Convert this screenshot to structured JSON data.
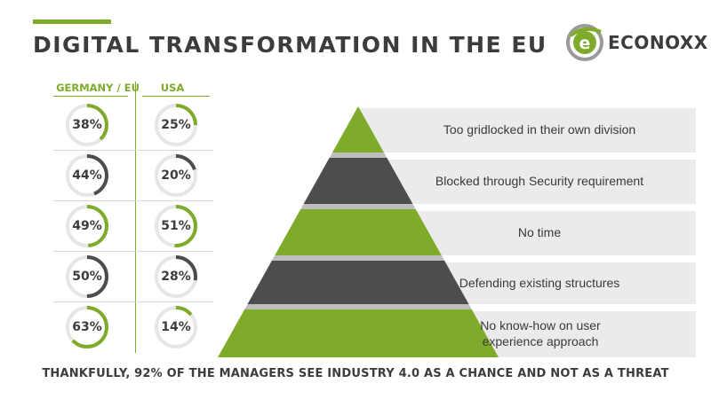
{
  "title": "DIGITAL TRANSFORMATION IN THE EU",
  "logo": {
    "text": "ECONOXX",
    "letter": "e"
  },
  "colors": {
    "green": "#7eab2a",
    "dark": "#4d4d4d",
    "ring_track": "#e6e6e6",
    "band": "#ebebeb"
  },
  "chart_data": [
    {
      "type": "table",
      "columns": [
        "GERMANY / EU",
        "USA"
      ],
      "rows": [
        {
          "germany_eu": 38,
          "usa": 25,
          "germany_color": "green",
          "usa_color": "green"
        },
        {
          "germany_eu": 44,
          "usa": 20,
          "germany_color": "dark",
          "usa_color": "dark"
        },
        {
          "germany_eu": 49,
          "usa": 51,
          "germany_color": "green",
          "usa_color": "green"
        },
        {
          "germany_eu": 50,
          "usa": 28,
          "germany_color": "dark",
          "usa_color": "dark"
        },
        {
          "germany_eu": 63,
          "usa": 14,
          "germany_color": "green",
          "usa_color": "green"
        }
      ],
      "unit": "%"
    },
    {
      "type": "pyramid",
      "levels": [
        {
          "label": "Too gridlocked in their own division",
          "color": "green"
        },
        {
          "label": "Blocked through Security requirement",
          "color": "dark"
        },
        {
          "label": "No time",
          "color": "green"
        },
        {
          "label": "Defending existing structures",
          "color": "dark"
        },
        {
          "label": "No know-how on user experience approach",
          "color": "green"
        }
      ]
    }
  ],
  "footer": "THANKFULLY, 92% OF THE MANAGERS SEE INDUSTRY 4.0 AS A CHANCE AND NOT AS A THREAT"
}
